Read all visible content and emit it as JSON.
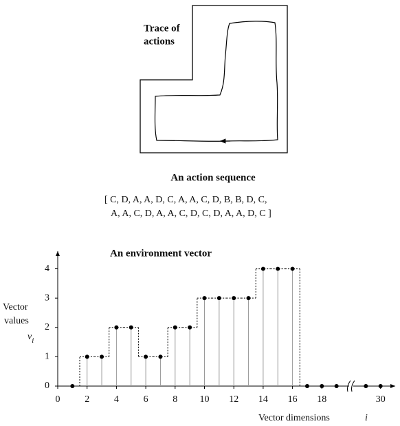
{
  "trace": {
    "title_lines": [
      "Trace of",
      "actions"
    ]
  },
  "sequence": {
    "title": "An action sequence",
    "lines": [
      "[ C, D, A, A, D, C, A, A, C, D, B, B, D, C,",
      "A, A, C, D, A, A, C, D, C, D, A, A, D, C ]"
    ]
  },
  "chart_data": {
    "type": "stem",
    "title": "An environment vector",
    "y_label_lines": [
      "Vector",
      "values"
    ],
    "y_symbol": "v",
    "y_symbol_sub": "i",
    "x_label": "Vector dimensions",
    "x_symbol": "i",
    "x": [
      1,
      2,
      3,
      4,
      5,
      6,
      7,
      8,
      9,
      10,
      11,
      12,
      13,
      14,
      15,
      16,
      17,
      18,
      19,
      29,
      30
    ],
    "values": [
      0,
      1,
      1,
      2,
      2,
      1,
      1,
      2,
      2,
      3,
      3,
      3,
      3,
      4,
      4,
      4,
      0,
      0,
      0,
      0,
      0
    ],
    "xlim": [
      0,
      31
    ],
    "ylim": [
      0,
      4.6
    ],
    "xticks": [
      0,
      2,
      4,
      6,
      8,
      10,
      12,
      14,
      16,
      18,
      30
    ],
    "yticks": [
      0,
      1,
      2,
      3,
      4
    ],
    "xbreak": [
      20,
      28
    ],
    "color": "#000000",
    "stem_color": "#999999"
  }
}
